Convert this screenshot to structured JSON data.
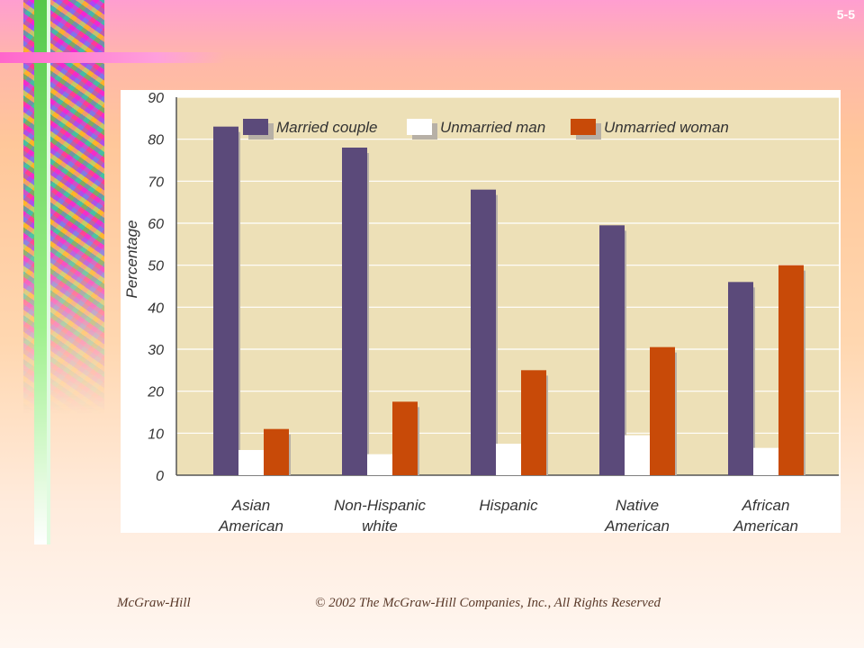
{
  "slide_number": "5-5",
  "footer": {
    "publisher": "McGraw-Hill",
    "copyright": "© 2002 The McGraw-Hill Companies, Inc., All Rights Reserved"
  },
  "colors": {
    "married": "#5b4a7a",
    "unmarried_man": "#ffffff",
    "unmarried_woman": "#c84a08",
    "shadow": "#b7b0a6",
    "plot_bg": "#ede0b7"
  },
  "chart_data": {
    "type": "bar",
    "title": "",
    "xlabel": "",
    "ylabel": "Percentage",
    "ylim": [
      0,
      90
    ],
    "yticks": [
      0,
      10,
      20,
      30,
      40,
      50,
      60,
      70,
      80,
      90
    ],
    "grid": true,
    "legend": "top",
    "categories": [
      [
        "Asian",
        "American"
      ],
      [
        "Non-Hispanic",
        "white"
      ],
      [
        "Hispanic"
      ],
      [
        "Native",
        "American"
      ],
      [
        "African",
        "American"
      ]
    ],
    "series": [
      {
        "name": "Married couple",
        "values": [
          83,
          78,
          68,
          59.5,
          46
        ]
      },
      {
        "name": "Unmarried man",
        "values": [
          6,
          5,
          7.5,
          9.5,
          6.5
        ]
      },
      {
        "name": "Unmarried woman",
        "values": [
          11,
          17.5,
          25,
          30.5,
          50
        ]
      }
    ]
  }
}
